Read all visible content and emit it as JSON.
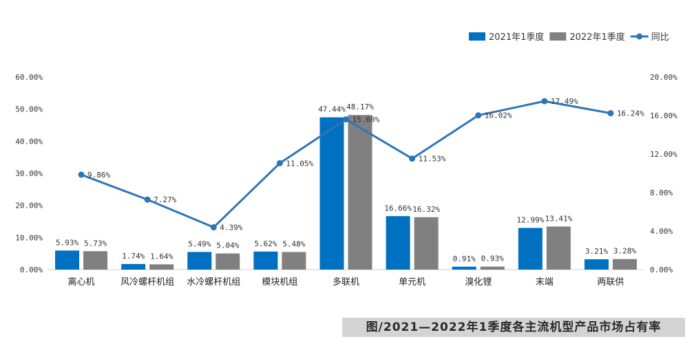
{
  "chart_data": {
    "type": "bar+line",
    "categories": [
      "离心机",
      "风冷螺杆机组",
      "水冷螺杆机组",
      "模块机组",
      "多联机",
      "单元机",
      "溴化锂",
      "末端",
      "两联供"
    ],
    "series": [
      {
        "name": "2021年1季度",
        "type": "bar",
        "axis": "left",
        "color": "#0070c0",
        "values": [
          5.93,
          1.74,
          5.49,
          5.62,
          47.44,
          16.66,
          0.91,
          12.99,
          3.21
        ],
        "labels": [
          "5.93%",
          "1.74%",
          "5.49%",
          "5.62%",
          "47.44%",
          "16.66%",
          "0.91%",
          "12.99%",
          "3.21%"
        ]
      },
      {
        "name": "2022年1季度",
        "type": "bar",
        "axis": "left",
        "color": "#808080",
        "values": [
          5.73,
          1.64,
          5.04,
          5.48,
          48.17,
          16.32,
          0.93,
          13.41,
          3.28
        ],
        "labels": [
          "5.73%",
          "1.64%",
          "5.04%",
          "5.48%",
          "48.17%",
          "16.32%",
          "0.93%",
          "13.41%",
          "3.28%"
        ]
      },
      {
        "name": "同比",
        "type": "line",
        "axis": "right",
        "color": "#2e75b6",
        "values": [
          9.86,
          7.27,
          4.39,
          11.05,
          15.6,
          11.53,
          16.02,
          17.49,
          16.24
        ],
        "labels": [
          "9.86%",
          "7.27%",
          "4.39%",
          "11.05%",
          "15.60%",
          "11.53%",
          "16.02%",
          "17.49%",
          "16.24%"
        ]
      }
    ],
    "y_left": {
      "range": [
        0,
        60
      ],
      "ticks": [
        "0.00%",
        "10.00%",
        "20.00%",
        "30.00%",
        "40.00%",
        "50.00%",
        "60.00%"
      ]
    },
    "y_right": {
      "range": [
        0,
        20
      ],
      "ticks": [
        "0.00%",
        "4.00%",
        "8.00%",
        "12.00%",
        "16.00%",
        "20.00%"
      ]
    },
    "legend_position": "top-right",
    "grid": false,
    "caption": "图/2021—2022年1季度各主流机型产品市场占有率"
  }
}
